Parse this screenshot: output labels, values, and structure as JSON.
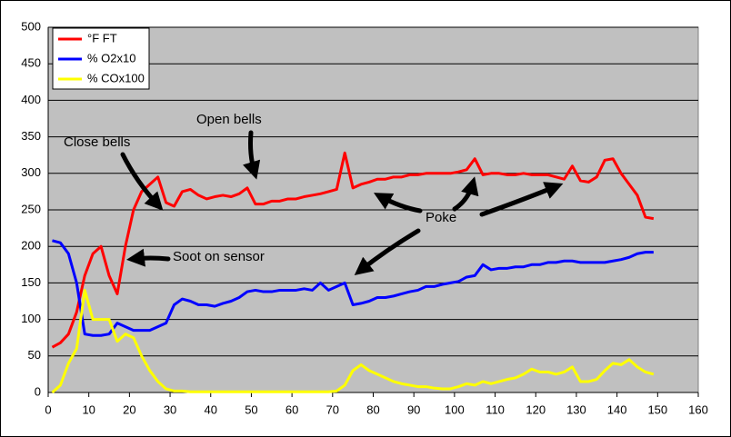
{
  "chart_data": {
    "type": "line",
    "x": [
      1,
      3,
      5,
      7,
      9,
      11,
      13,
      15,
      17,
      19,
      21,
      23,
      25,
      27,
      29,
      31,
      33,
      35,
      37,
      39,
      41,
      43,
      45,
      47,
      49,
      51,
      53,
      55,
      57,
      59,
      61,
      63,
      65,
      67,
      69,
      71,
      73,
      75,
      77,
      79,
      81,
      83,
      85,
      87,
      89,
      91,
      93,
      95,
      97,
      99,
      101,
      103,
      105,
      107,
      109,
      111,
      113,
      115,
      117,
      119,
      121,
      123,
      125,
      127,
      129,
      131,
      133,
      135,
      137,
      139,
      141,
      143,
      145,
      147,
      149
    ],
    "series": [
      {
        "name": "°F FT",
        "color": "#ff0000",
        "values": [
          62,
          68,
          80,
          110,
          160,
          190,
          200,
          160,
          135,
          200,
          250,
          275,
          285,
          295,
          260,
          255,
          275,
          278,
          270,
          265,
          268,
          270,
          268,
          272,
          280,
          258,
          258,
          262,
          262,
          265,
          265,
          268,
          270,
          272,
          275,
          278,
          328,
          280,
          285,
          288,
          292,
          292,
          295,
          295,
          298,
          298,
          300,
          300,
          300,
          300,
          302,
          305,
          320,
          298,
          300,
          300,
          298,
          298,
          300,
          298,
          298,
          298,
          295,
          292,
          310,
          290,
          288,
          295,
          318,
          320,
          300,
          285,
          270,
          240,
          238
        ]
      },
      {
        "name": "% O2x10",
        "color": "#0000ff",
        "values": [
          208,
          205,
          190,
          150,
          80,
          78,
          78,
          80,
          95,
          90,
          85,
          85,
          85,
          90,
          95,
          120,
          128,
          125,
          120,
          120,
          118,
          122,
          125,
          130,
          138,
          140,
          138,
          138,
          140,
          140,
          140,
          142,
          140,
          150,
          140,
          145,
          150,
          120,
          122,
          125,
          130,
          130,
          132,
          135,
          138,
          140,
          145,
          145,
          148,
          150,
          152,
          158,
          160,
          175,
          168,
          170,
          170,
          172,
          172,
          175,
          175,
          178,
          178,
          180,
          180,
          178,
          178,
          178,
          178,
          180,
          182,
          185,
          190,
          192,
          192
        ]
      },
      {
        "name": "% COx100",
        "color": "#ffff00",
        "values": [
          0,
          10,
          40,
          60,
          140,
          100,
          100,
          100,
          70,
          80,
          75,
          50,
          30,
          15,
          5,
          2,
          2,
          1,
          1,
          1,
          1,
          1,
          1,
          1,
          1,
          1,
          1,
          1,
          1,
          1,
          1,
          1,
          1,
          1,
          1,
          2,
          10,
          30,
          38,
          30,
          25,
          20,
          15,
          12,
          10,
          8,
          8,
          6,
          5,
          5,
          8,
          12,
          10,
          15,
          12,
          15,
          18,
          20,
          25,
          32,
          28,
          28,
          25,
          28,
          35,
          15,
          15,
          18,
          30,
          40,
          38,
          45,
          35,
          28,
          25
        ]
      }
    ],
    "xlim": [
      0,
      160
    ],
    "xticks": [
      0,
      10,
      20,
      30,
      40,
      50,
      60,
      70,
      80,
      90,
      100,
      110,
      120,
      130,
      140,
      150,
      160
    ],
    "ylim": [
      0,
      500
    ],
    "yticks": [
      0,
      50,
      100,
      150,
      200,
      250,
      300,
      350,
      400,
      450,
      500
    ],
    "grid": true,
    "legend": "top-left",
    "annotations": [
      "Open bells",
      "Close bells",
      "Soot on sensor",
      "Poke"
    ]
  }
}
